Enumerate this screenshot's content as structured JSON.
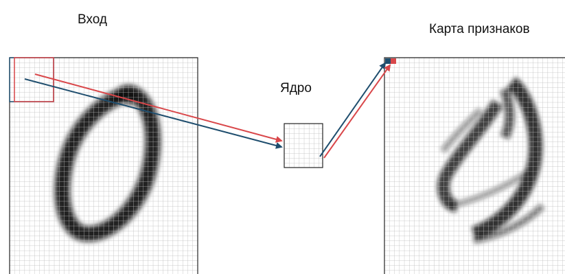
{
  "labels": {
    "input": "Вход",
    "kernel": "Ядро",
    "feature_map": "Карта признаков"
  },
  "colors": {
    "grid_line": "#bcbcbc",
    "frame": "#222222",
    "red_arrow": "#d9474a",
    "blue_arrow": "#1f4e6e",
    "ink": "#111111"
  }
}
